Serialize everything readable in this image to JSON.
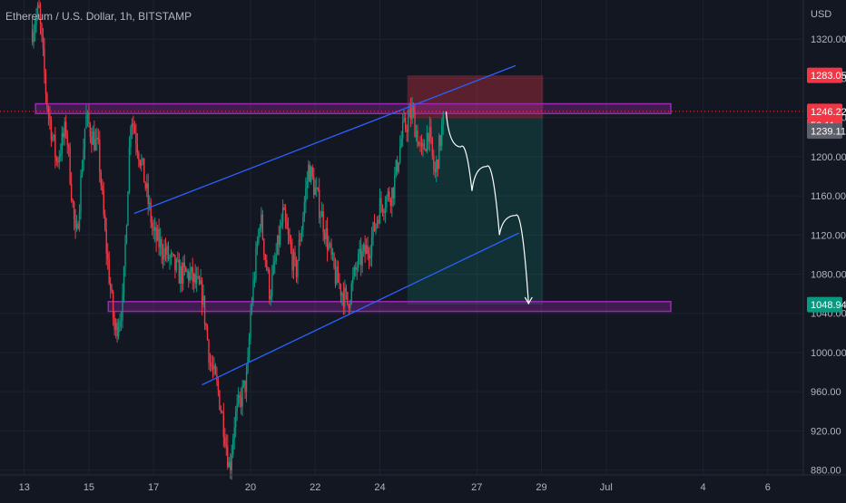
{
  "title": "Ethereum / U.S. Dollar, 1h, BITSTAMP",
  "currency_label": "USD",
  "chart_data": {
    "type": "candlestick",
    "symbol": "Ethereum / U.S. Dollar",
    "interval": "1h",
    "exchange": "BITSTAMP",
    "y_unit": "USD",
    "ylim": [
      875,
      1360
    ],
    "grid": true,
    "y_ticks": [
      "1320.00",
      "1280.00",
      "1240.00",
      "1200.00",
      "1160.00",
      "1120.00",
      "1080.00",
      "1040.00",
      "1000.00",
      "960.00",
      "920.00",
      "880.00"
    ],
    "x_ticks": [
      "13",
      "15",
      "17",
      "20",
      "22",
      "24",
      "27",
      "29",
      "Jul",
      "4",
      "6"
    ],
    "x_tick_days": [
      13,
      15,
      17,
      20,
      22,
      24,
      27,
      29,
      31,
      34,
      36
    ],
    "x_range_days": [
      12.25,
      37.1
    ],
    "candles_days": [
      13.25,
      26.0
    ],
    "price_path": [
      [
        13.25,
        1330
      ],
      [
        13.45,
        1350
      ],
      [
        13.7,
        1255
      ],
      [
        14.0,
        1195
      ],
      [
        14.3,
        1230
      ],
      [
        14.6,
        1110
      ],
      [
        14.9,
        1240
      ],
      [
        15.3,
        1205
      ],
      [
        15.5,
        1120
      ],
      [
        15.8,
        1020
      ],
      [
        16.05,
        1050
      ],
      [
        16.3,
        1246
      ],
      [
        16.7,
        1180
      ],
      [
        17.0,
        1120
      ],
      [
        17.4,
        1100
      ],
      [
        17.8,
        1080
      ],
      [
        18.1,
        1080
      ],
      [
        18.5,
        1060
      ],
      [
        18.75,
        990
      ],
      [
        19.0,
        960
      ],
      [
        19.2,
        920
      ],
      [
        19.35,
        880
      ],
      [
        19.5,
        930
      ],
      [
        19.9,
        975
      ],
      [
        20.0,
        1040
      ],
      [
        20.3,
        1140
      ],
      [
        20.6,
        1060
      ],
      [
        21.0,
        1140
      ],
      [
        21.4,
        1080
      ],
      [
        21.8,
        1190
      ],
      [
        22.2,
        1140
      ],
      [
        22.6,
        1080
      ],
      [
        23.0,
        1050
      ],
      [
        23.3,
        1090
      ],
      [
        23.7,
        1110
      ],
      [
        24.0,
        1150
      ],
      [
        24.4,
        1165
      ],
      [
        24.7,
        1225
      ],
      [
        25.0,
        1245
      ],
      [
        25.3,
        1200
      ],
      [
        25.5,
        1228
      ],
      [
        25.7,
        1180
      ],
      [
        26.0,
        1246
      ]
    ],
    "candle_colors": {
      "up": "#089981",
      "down": "#f23645"
    },
    "last_price": 1246.22,
    "countdown": "50:11",
    "tags": [
      {
        "label": "1283.05",
        "color": "#f23645"
      },
      {
        "label": "1246.22",
        "color": "#f23645"
      },
      {
        "label": "50:11",
        "color": "#f23645"
      },
      {
        "label": "1239.11",
        "color": "#5d606b"
      },
      {
        "label": "1048.94",
        "color": "#089981"
      }
    ],
    "tag_prices": [
      1283.05,
      1246.22,
      1239.11,
      1048.94
    ],
    "drawings": {
      "resistance_zone": {
        "from_day": 13.35,
        "to_day": 33.0,
        "price_low": 1244,
        "price_high": 1254,
        "color": "#9c27b0"
      },
      "support_zone": {
        "from_day": 15.6,
        "to_day": 33.0,
        "price_low": 1042,
        "price_high": 1052,
        "color": "#9c27b0"
      },
      "channel_upper": {
        "from": [
          16.4,
          1142
        ],
        "to": [
          28.2,
          1293
        ],
        "color": "#2962ff"
      },
      "channel_lower": {
        "from": [
          18.5,
          967
        ],
        "to": [
          28.3,
          1122
        ],
        "color": "#2962ff"
      },
      "short_position": {
        "from_day": 24.85,
        "to_day": 29.05,
        "entry": 1239.11,
        "stop": 1283.05,
        "target": 1048.94,
        "stop_color": "#f23645",
        "target_color": "#089981"
      },
      "projection_path": [
        [
          26.05,
          1246
        ],
        [
          26.5,
          1210
        ],
        [
          26.85,
          1165
        ],
        [
          27.3,
          1190
        ],
        [
          27.7,
          1120
        ],
        [
          28.2,
          1140
        ],
        [
          28.6,
          1050
        ]
      ],
      "projection_color": "#ffffff"
    }
  }
}
